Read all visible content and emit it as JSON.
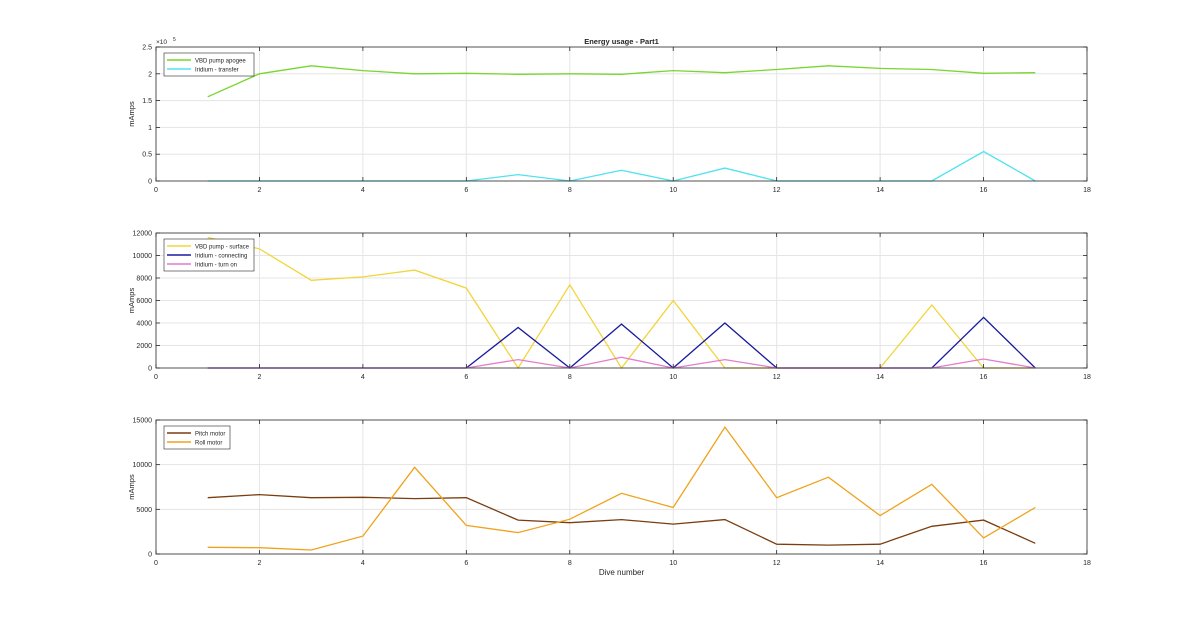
{
  "figure": {
    "title": "Energy usage - Part1",
    "colors": {
      "grid": "#e5e5e5",
      "axis": "#262626",
      "background": "#ffffff"
    }
  },
  "chart_data": [
    {
      "type": "line",
      "title": "Energy usage - Part1",
      "xlabel": "",
      "ylabel": "mAmps",
      "xlim": [
        0,
        18
      ],
      "ylim": [
        0,
        250000
      ],
      "xticks": [
        0,
        2,
        4,
        6,
        8,
        10,
        12,
        14,
        16,
        18
      ],
      "yticks": [
        0,
        50000,
        100000,
        150000,
        200000,
        250000
      ],
      "ytick_labels": [
        "0",
        "0.5",
        "1",
        "1.5",
        "2",
        "2.5"
      ],
      "y_exponent_label": "×10",
      "y_exponent_power": "5",
      "grid": true,
      "legend_position": "top-left",
      "x": [
        1,
        2,
        3,
        4,
        5,
        6,
        7,
        8,
        9,
        10,
        11,
        12,
        13,
        14,
        15,
        16,
        17
      ],
      "series": [
        {
          "name": "VBD pump apogee",
          "color": "#77d62f",
          "values": [
            157000,
            200000,
            215000,
            206000,
            200000,
            201000,
            199000,
            200000,
            199000,
            206000,
            202000,
            208000,
            215000,
            210000,
            208000,
            201000,
            202000
          ]
        },
        {
          "name": "Iridium - transfer",
          "color": "#4fe3f0",
          "values": [
            0,
            0,
            0,
            0,
            0,
            0,
            12000,
            0,
            20000,
            0,
            24000,
            0,
            0,
            0,
            0,
            55000,
            0
          ]
        }
      ]
    },
    {
      "type": "line",
      "title": "",
      "xlabel": "",
      "ylabel": "mAmps",
      "xlim": [
        0,
        18
      ],
      "ylim": [
        0,
        12000
      ],
      "xticks": [
        0,
        2,
        4,
        6,
        8,
        10,
        12,
        14,
        16,
        18
      ],
      "yticks": [
        0,
        2000,
        4000,
        6000,
        8000,
        10000,
        12000
      ],
      "ytick_labels": [
        "0",
        "2000",
        "4000",
        "6000",
        "8000",
        "10000",
        "12000"
      ],
      "grid": true,
      "legend_position": "top-left",
      "series": [
        {
          "name": "VBD pump - surface",
          "color": "#f2d53b",
          "x": [
            1,
            2,
            3,
            4,
            5,
            6,
            7,
            8,
            9,
            10,
            11,
            12,
            13,
            14,
            15,
            16,
            17
          ],
          "values": [
            11600,
            10600,
            7800,
            8100,
            8700,
            7100,
            0,
            7400,
            0,
            6000,
            0,
            0,
            0,
            0,
            5600,
            0,
            0
          ]
        },
        {
          "name": "Iridium - connecting",
          "color": "#1a1a9e",
          "x": [
            1,
            2,
            3,
            4,
            5,
            6,
            7,
            8,
            9,
            10,
            11,
            12,
            13,
            14,
            15,
            16,
            17
          ],
          "values": [
            0,
            0,
            0,
            0,
            0,
            0,
            3600,
            0,
            3900,
            0,
            4000,
            0,
            0,
            0,
            0,
            4500,
            0
          ]
        },
        {
          "name": "Iridium - turn on",
          "color": "#e27ccf",
          "x": [
            1,
            2,
            3,
            4,
            5,
            6,
            7,
            8,
            9,
            10,
            11,
            12,
            13,
            14,
            15,
            16,
            17
          ],
          "values": [
            0,
            0,
            0,
            0,
            0,
            0,
            750,
            0,
            950,
            0,
            750,
            0,
            0,
            0,
            0,
            800,
            0
          ]
        }
      ]
    },
    {
      "type": "line",
      "title": "",
      "xlabel": "Dive number",
      "ylabel": "mAmps",
      "xlim": [
        0,
        18
      ],
      "ylim": [
        0,
        15000
      ],
      "xticks": [
        0,
        2,
        4,
        6,
        8,
        10,
        12,
        14,
        16,
        18
      ],
      "yticks": [
        0,
        5000,
        10000,
        15000
      ],
      "ytick_labels": [
        "0",
        "5000",
        "10000",
        "15000"
      ],
      "grid": true,
      "legend_position": "top-left",
      "x": [
        1,
        2,
        3,
        4,
        5,
        6,
        7,
        8,
        9,
        10,
        11,
        12,
        13,
        14,
        15,
        16,
        17
      ],
      "series": [
        {
          "name": "Pitch motor",
          "color": "#7a3d10",
          "values": [
            6300,
            6650,
            6300,
            6350,
            6200,
            6300,
            3800,
            3500,
            3850,
            3350,
            3850,
            1100,
            1000,
            1100,
            3100,
            3800,
            1200
          ]
        },
        {
          "name": "Roll motor",
          "color": "#f0a21c",
          "values": [
            750,
            700,
            450,
            2000,
            9700,
            3200,
            2400,
            3900,
            6800,
            5200,
            14200,
            6300,
            8600,
            4300,
            7800,
            1800,
            5200
          ]
        }
      ]
    }
  ]
}
